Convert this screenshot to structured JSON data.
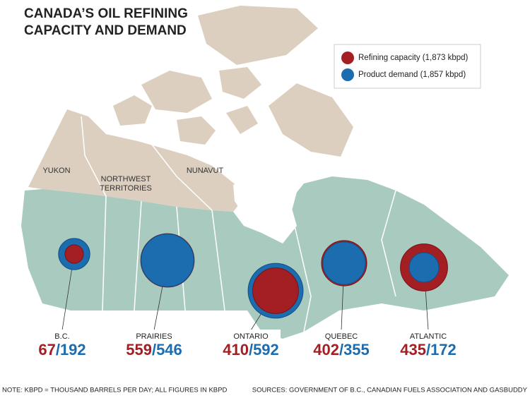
{
  "title_lines": [
    "CANADA’S OIL REFINING",
    "CAPACITY AND DEMAND"
  ],
  "legend": [
    {
      "name": "Refining capacity (1,873 kbpd)",
      "color": "#a31f24"
    },
    {
      "name": "Product demand (1,857 kbpd)",
      "color": "#1c6db0"
    }
  ],
  "territories": [
    {
      "lines": [
        "YUKON"
      ]
    },
    {
      "lines": [
        "NORTHWEST",
        "TERRITORIES"
      ]
    },
    {
      "lines": [
        "NUNAVUT"
      ]
    }
  ],
  "regions": [
    {
      "name": "B.C.",
      "capacity": 67,
      "demand": 192
    },
    {
      "name": "PRAIRIES",
      "capacity": 559,
      "demand": 546
    },
    {
      "name": "ONTARIO",
      "capacity": 410,
      "demand": 592
    },
    {
      "name": "QUEBEC",
      "capacity": 402,
      "demand": 355
    },
    {
      "name": "ATLANTIC",
      "capacity": 435,
      "demand": 172
    }
  ],
  "note": "NOTE: KBPD = THOUSAND BARRELS PER DAY; ALL FIGURES IN KBPD",
  "source": "SOURCES: GOVERNMENT OF B.C., CANADIAN FUELS ASSOCIATION AND GASBUDDY"
}
